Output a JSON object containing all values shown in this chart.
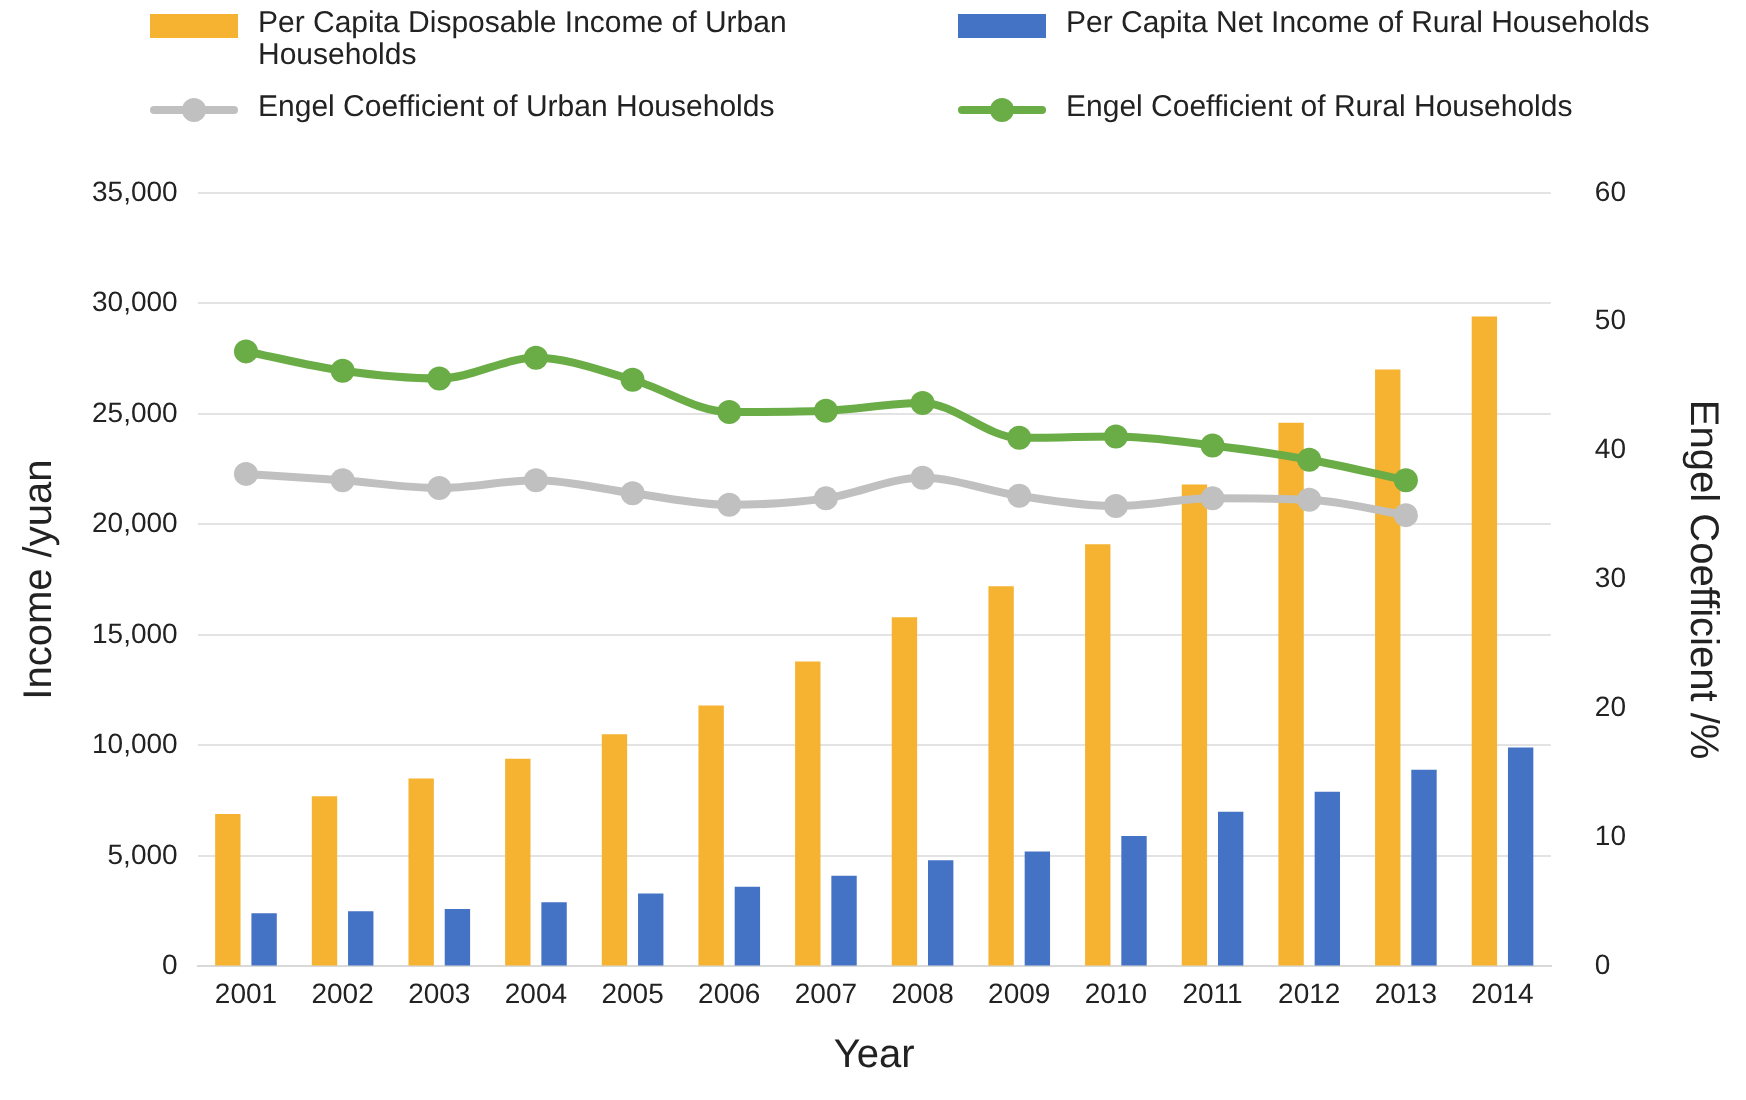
{
  "chart_data": {
    "type": "bar",
    "xlabel": "Year",
    "ylabel": "Income /yuan",
    "y2label": "Engel Coefficient /%",
    "categories": [
      "2001",
      "2002",
      "2003",
      "2004",
      "2005",
      "2006",
      "2007",
      "2008",
      "2009",
      "2010",
      "2011",
      "2012",
      "2013",
      "2014"
    ],
    "series": [
      {
        "name": "Per Capita Disposable Income of Urban Households",
        "color": "#f5b331",
        "values": [
          6900,
          7700,
          8500,
          9400,
          10500,
          11800,
          13800,
          15800,
          17200,
          19100,
          21800,
          24600,
          27000,
          29400
        ]
      },
      {
        "name": "Per Capita Net Income of Rural Households",
        "color": "#4472c4",
        "values": [
          2400,
          2500,
          2600,
          2900,
          3300,
          3600,
          4100,
          4800,
          5200,
          5900,
          7000,
          7900,
          8900,
          9900
        ]
      },
      {
        "name": "Engel Coefficient of Urban Households",
        "type": "line",
        "axis": "y2",
        "color": "#c0c0c0",
        "values": [
          38.2,
          37.7,
          37.1,
          37.7,
          36.7,
          35.8,
          36.3,
          37.9,
          36.5,
          35.7,
          36.3,
          36.2,
          35.0,
          null
        ]
      },
      {
        "name": "Engel Coefficient of Rural Households",
        "type": "line",
        "axis": "y2",
        "color": "#6aac46",
        "values": [
          47.7,
          46.2,
          45.6,
          47.2,
          45.5,
          43.0,
          43.1,
          43.7,
          41.0,
          41.1,
          40.4,
          39.3,
          37.7,
          null
        ]
      }
    ],
    "ylim": [
      0,
      35000
    ],
    "yticks": [
      {
        "value": 0,
        "label": "0"
      },
      {
        "value": 5000,
        "label": "5,000"
      },
      {
        "value": 10000,
        "label": "10,000"
      },
      {
        "value": 15000,
        "label": "15,000"
      },
      {
        "value": 20000,
        "label": "20,000"
      },
      {
        "value": 25000,
        "label": "25,000"
      },
      {
        "value": 30000,
        "label": "30,000"
      },
      {
        "value": 35000,
        "label": "35,000"
      }
    ],
    "y2lim": [
      0,
      60
    ],
    "y2ticks": [
      0,
      10,
      20,
      30,
      40,
      50,
      60
    ],
    "grid": "y",
    "legend": "top",
    "marker": "circle",
    "line_style": "solid"
  }
}
